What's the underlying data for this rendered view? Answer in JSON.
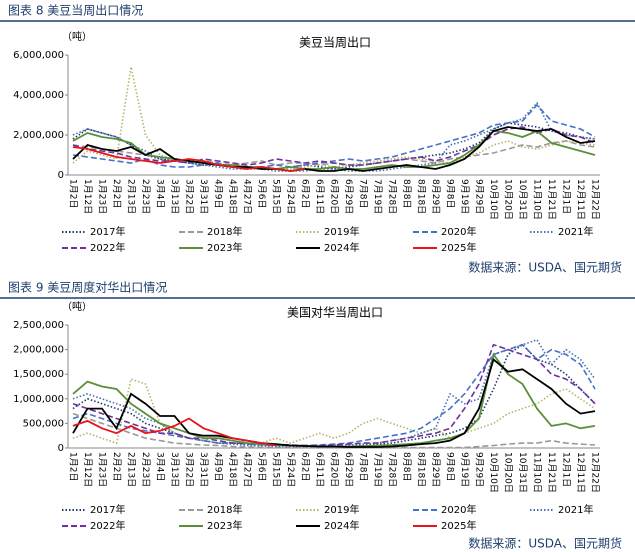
{
  "chart_data": [
    {
      "type": "line",
      "caption": "图表 8 美豆当周出口情况",
      "title": "美豆当周出口",
      "y_label": "（吨）",
      "source": "数据来源：USDA、国元期货",
      "categories": [
        "1月2日",
        "1月12日",
        "1月23日",
        "2月2日",
        "2月13日",
        "2月23日",
        "3月4日",
        "3月13日",
        "3月22日",
        "3月31日",
        "4月9日",
        "4月18日",
        "4月27日",
        "5月6日",
        "5月15日",
        "5月24日",
        "6月2日",
        "6月11日",
        "6月20日",
        "6月29日",
        "7月8日",
        "7月19日",
        "7月28日",
        "8月8日",
        "8月18日",
        "8月29日",
        "9月8日",
        "9月19日",
        "9月29日",
        "10月10日",
        "10月20日",
        "10月31日",
        "11月10日",
        "11月21日",
        "12月1日",
        "12月11日",
        "12月22日"
      ],
      "ylim": [
        0,
        6000000
      ],
      "yticks": [
        0,
        {
          "value": 2000000,
          "label": "2,000,000"
        },
        {
          "value": 4000000,
          "label": "4,000,000"
        },
        {
          "value": 6000000,
          "label": "6,000,000"
        }
      ],
      "series": [
        {
          "name": "2017年",
          "color": "#1f3a6e",
          "style": "dotted",
          "values": [
            1800000,
            2300000,
            2100000,
            1900000,
            1500000,
            1000000,
            800000,
            700000,
            600000,
            500000,
            500000,
            400000,
            400000,
            400000,
            300000,
            400000,
            500000,
            400000,
            300000,
            400000,
            500000,
            600000,
            700000,
            800000,
            900000,
            1000000,
            1100000,
            1300000,
            1600000,
            2300000,
            2600000,
            2500000,
            2400000,
            2200000,
            2100000,
            1900000,
            1800000
          ]
        },
        {
          "name": "2018年",
          "color": "#999999",
          "style": "dashed",
          "values": [
            1500000,
            1400000,
            1300000,
            1200000,
            1100000,
            1000000,
            900000,
            800000,
            700000,
            700000,
            600000,
            500000,
            600000,
            700000,
            500000,
            600000,
            600000,
            500000,
            600000,
            500000,
            500000,
            600000,
            700000,
            800000,
            700000,
            600000,
            800000,
            900000,
            1000000,
            1100000,
            1300000,
            1500000,
            1400000,
            1600000,
            1700000,
            1500000,
            1400000
          ]
        },
        {
          "name": "2019年",
          "color": "#b5b56a",
          "style": "dotted",
          "values": [
            600000,
            1200000,
            1000000,
            800000,
            5400000,
            2000000,
            1000000,
            800000,
            700000,
            600000,
            500000,
            500000,
            400000,
            400000,
            300000,
            300000,
            400000,
            500000,
            400000,
            500000,
            600000,
            700000,
            800000,
            900000,
            800000,
            700000,
            600000,
            900000,
            1100000,
            1500000,
            1700000,
            1400000,
            1300000,
            1500000,
            1700000,
            1600000,
            1500000
          ]
        },
        {
          "name": "2020年",
          "color": "#4472c4",
          "style": "dashed",
          "values": [
            1000000,
            900000,
            800000,
            700000,
            600000,
            800000,
            500000,
            400000,
            400000,
            500000,
            600000,
            400000,
            300000,
            400000,
            500000,
            400000,
            500000,
            600000,
            700000,
            800000,
            700000,
            800000,
            900000,
            1100000,
            1300000,
            1500000,
            1700000,
            1900000,
            2100000,
            2500000,
            2600000,
            2700000,
            3500000,
            2700000,
            2500000,
            2300000,
            1900000
          ]
        },
        {
          "name": "2021年",
          "color": "#4a6fb5",
          "style": "dotted",
          "values": [
            2000000,
            2300000,
            2100000,
            1900000,
            1500000,
            1200000,
            800000,
            700000,
            600000,
            500000,
            400000,
            300000,
            300000,
            300000,
            200000,
            200000,
            200000,
            300000,
            300000,
            200000,
            200000,
            200000,
            300000,
            400000,
            500000,
            600000,
            1500000,
            1700000,
            2000000,
            2300000,
            2600000,
            2800000,
            3600000,
            2200000,
            2000000,
            1900000,
            1800000
          ]
        },
        {
          "name": "2022年",
          "color": "#7030a0",
          "style": "dashed",
          "values": [
            1500000,
            1300000,
            1200000,
            1100000,
            900000,
            800000,
            700000,
            700000,
            600000,
            800000,
            700000,
            600000,
            500000,
            600000,
            800000,
            700000,
            600000,
            700000,
            600000,
            500000,
            500000,
            600000,
            700000,
            800000,
            900000,
            700000,
            900000,
            1200000,
            1500000,
            2000000,
            2300000,
            2400000,
            2100000,
            2300000,
            2000000,
            1900000,
            1600000
          ]
        },
        {
          "name": "2023年",
          "color": "#5b8f3a",
          "style": "solid",
          "values": [
            1700000,
            2100000,
            1900000,
            1800000,
            1600000,
            1000000,
            900000,
            800000,
            700000,
            600000,
            500000,
            500000,
            400000,
            400000,
            300000,
            400000,
            300000,
            300000,
            400000,
            300000,
            300000,
            400000,
            500000,
            400000,
            400000,
            500000,
            600000,
            1000000,
            1500000,
            2200000,
            2100000,
            1900000,
            2200000,
            1600000,
            1400000,
            1200000,
            1000000
          ]
        },
        {
          "name": "2024年",
          "color": "#000000",
          "style": "solid",
          "values": [
            800000,
            1500000,
            1300000,
            1200000,
            1400000,
            1000000,
            1300000,
            800000,
            700000,
            600000,
            500000,
            400000,
            400000,
            300000,
            300000,
            200000,
            300000,
            200000,
            200000,
            300000,
            200000,
            300000,
            400000,
            500000,
            400000,
            300000,
            500000,
            800000,
            1400000,
            2200000,
            2400000,
            2300000,
            2200000,
            2300000,
            1900000,
            1600000,
            1700000
          ]
        },
        {
          "name": "2025年",
          "color": "#e8141b",
          "style": "solid",
          "values": [
            1400000,
            1300000,
            1100000,
            900000,
            800000,
            700000,
            600000,
            700000,
            800000,
            700000,
            500000,
            400000,
            300000,
            400000,
            300000,
            200000,
            300000,
            null,
            null,
            null,
            null,
            null,
            null,
            null,
            null,
            null,
            null,
            null,
            null,
            null,
            null,
            null,
            null,
            null,
            null,
            null,
            null
          ]
        }
      ]
    },
    {
      "type": "line",
      "caption": "图表 9 美豆周度对华出口情况",
      "title": "美国对华当周出口",
      "y_label": "（吨）",
      "source": "数据来源：USDA、国元期货",
      "categories": [
        "1月2日",
        "1月12日",
        "1月23日",
        "2月2日",
        "2月13日",
        "2月23日",
        "3月4日",
        "3月13日",
        "3月22日",
        "3月31日",
        "4月9日",
        "4月18日",
        "4月27日",
        "5月6日",
        "5月15日",
        "5月24日",
        "6月2日",
        "6月11日",
        "6月20日",
        "6月29日",
        "7月8日",
        "7月19日",
        "7月28日",
        "8月8日",
        "8月18日",
        "8月29日",
        "9月8日",
        "9月19日",
        "9月29日",
        "10月10日",
        "10月20日",
        "10月31日",
        "11月10日",
        "11月21日",
        "12月1日",
        "12月11日",
        "12月22日"
      ],
      "ylim": [
        0,
        2500000
      ],
      "yticks": [
        0,
        {
          "value": 500000,
          "label": "500,000"
        },
        {
          "value": 1000000,
          "label": "1,000,000"
        },
        {
          "value": 1500000,
          "label": "1,500,000"
        },
        {
          "value": 2000000,
          "label": "2,000,000"
        },
        {
          "value": 2500000,
          "label": "2,500,000"
        }
      ],
      "series": [
        {
          "name": "2017年",
          "color": "#1f3a6e",
          "style": "dotted",
          "values": [
            800000,
            1000000,
            900000,
            800000,
            700000,
            500000,
            400000,
            300000,
            200000,
            150000,
            100000,
            100000,
            80000,
            60000,
            50000,
            40000,
            30000,
            30000,
            30000,
            50000,
            50000,
            80000,
            100000,
            150000,
            200000,
            250000,
            300000,
            400000,
            600000,
            1200000,
            1900000,
            2100000,
            1800000,
            1700000,
            1500000,
            1200000,
            900000
          ]
        },
        {
          "name": "2018年",
          "color": "#999999",
          "style": "dashed",
          "values": [
            700000,
            600000,
            500000,
            400000,
            300000,
            200000,
            150000,
            100000,
            80000,
            60000,
            50000,
            30000,
            20000,
            10000,
            10000,
            10000,
            10000,
            10000,
            10000,
            10000,
            10000,
            10000,
            10000,
            10000,
            10000,
            10000,
            10000,
            10000,
            30000,
            50000,
            80000,
            100000,
            100000,
            150000,
            100000,
            80000,
            60000
          ]
        },
        {
          "name": "2019年",
          "color": "#b5b56a",
          "style": "dotted",
          "values": [
            200000,
            300000,
            200000,
            100000,
            1400000,
            1300000,
            500000,
            300000,
            200000,
            150000,
            100000,
            100000,
            150000,
            100000,
            200000,
            100000,
            200000,
            300000,
            200000,
            300000,
            500000,
            600000,
            500000,
            400000,
            300000,
            400000,
            200000,
            300000,
            400000,
            500000,
            700000,
            800000,
            900000,
            1100000,
            1200000,
            1000000,
            800000
          ]
        },
        {
          "name": "2020年",
          "color": "#4472c4",
          "style": "dashed",
          "values": [
            600000,
            700000,
            600000,
            500000,
            400000,
            350000,
            300000,
            250000,
            200000,
            150000,
            100000,
            100000,
            80000,
            60000,
            50000,
            50000,
            50000,
            60000,
            80000,
            100000,
            150000,
            200000,
            250000,
            300000,
            400000,
            600000,
            800000,
            1100000,
            1500000,
            1900000,
            2000000,
            2100000,
            1800000,
            2000000,
            1900000,
            1700000,
            1200000
          ]
        },
        {
          "name": "2021年",
          "color": "#4a6fb5",
          "style": "dotted",
          "values": [
            1000000,
            1100000,
            1000000,
            900000,
            800000,
            600000,
            500000,
            300000,
            200000,
            150000,
            100000,
            80000,
            50000,
            40000,
            30000,
            30000,
            30000,
            40000,
            50000,
            60000,
            80000,
            100000,
            150000,
            200000,
            300000,
            400000,
            1100000,
            900000,
            1000000,
            1900000,
            2000000,
            2100000,
            2200000,
            1700000,
            2000000,
            1800000,
            1400000
          ]
        },
        {
          "name": "2022年",
          "color": "#7030a0",
          "style": "dashed",
          "values": [
            900000,
            800000,
            700000,
            600000,
            500000,
            400000,
            300000,
            300000,
            200000,
            200000,
            150000,
            100000,
            100000,
            80000,
            70000,
            60000,
            50000,
            50000,
            60000,
            80000,
            100000,
            100000,
            150000,
            200000,
            250000,
            300000,
            400000,
            800000,
            1300000,
            2100000,
            2000000,
            1900000,
            1800000,
            1500000,
            1400000,
            1200000,
            900000
          ]
        },
        {
          "name": "2023年",
          "color": "#5b8f3a",
          "style": "solid",
          "values": [
            1100000,
            1350000,
            1250000,
            1200000,
            900000,
            700000,
            500000,
            400000,
            300000,
            200000,
            200000,
            150000,
            100000,
            80000,
            60000,
            50000,
            40000,
            30000,
            30000,
            30000,
            40000,
            50000,
            60000,
            80000,
            100000,
            150000,
            200000,
            300000,
            600000,
            1900000,
            1500000,
            1300000,
            800000,
            450000,
            500000,
            400000,
            450000
          ]
        },
        {
          "name": "2024年",
          "color": "#000000",
          "style": "solid",
          "values": [
            300000,
            800000,
            800000,
            400000,
            1100000,
            900000,
            650000,
            650000,
            300000,
            250000,
            250000,
            200000,
            150000,
            100000,
            80000,
            50000,
            40000,
            30000,
            30000,
            20000,
            20000,
            20000,
            30000,
            50000,
            80000,
            100000,
            150000,
            300000,
            800000,
            1800000,
            1550000,
            1600000,
            1400000,
            1200000,
            900000,
            700000,
            750000
          ]
        },
        {
          "name": "2025年",
          "color": "#e8141b",
          "style": "solid",
          "values": [
            450000,
            550000,
            400000,
            300000,
            450000,
            300000,
            350000,
            450000,
            600000,
            400000,
            300000,
            200000,
            150000,
            100000,
            50000,
            null,
            null,
            null,
            null,
            null,
            null,
            null,
            null,
            null,
            null,
            null,
            null,
            null,
            null,
            null,
            null,
            null,
            null,
            null,
            null,
            null,
            null
          ]
        }
      ]
    }
  ]
}
